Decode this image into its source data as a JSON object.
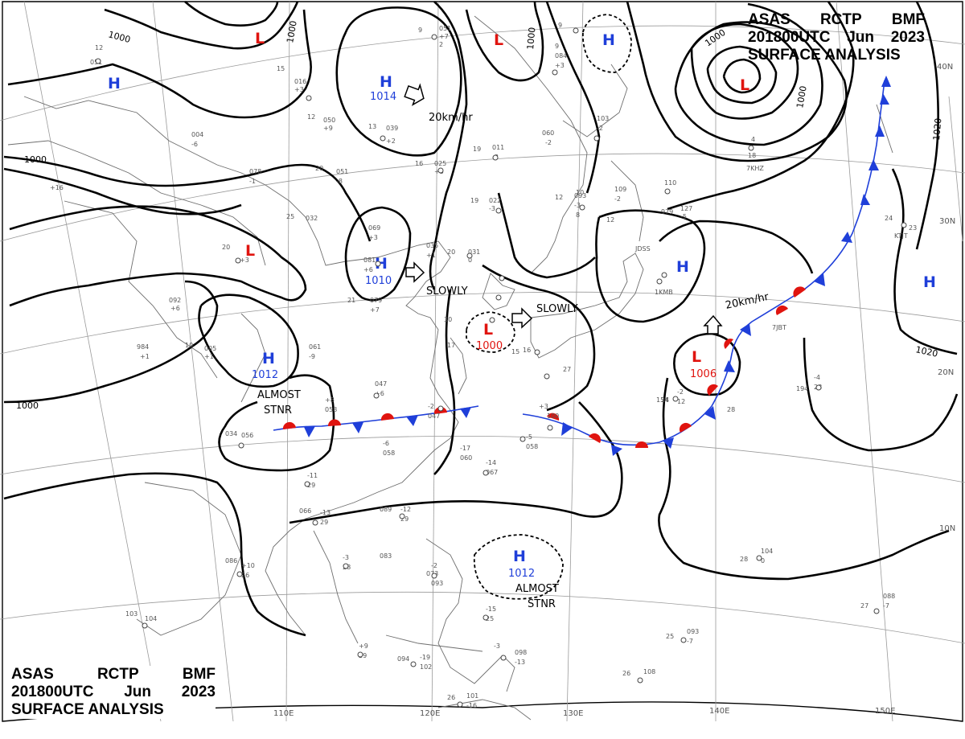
{
  "header_top": {
    "line1": [
      "ASAS",
      "RCTP",
      "BMF"
    ],
    "line2": [
      "201800UTC",
      "Jun",
      "2023"
    ],
    "line3": "SURFACE ANALYSIS"
  },
  "header_bottom": {
    "line1": [
      "ASAS",
      "RCTP",
      "BMF"
    ],
    "line2": [
      "201800UTC",
      "Jun",
      "2023"
    ],
    "line3": "SURFACE ANALYSIS"
  },
  "colors": {
    "high": "#1f3fd9",
    "low": "#e0140f",
    "isobar": "#000000",
    "coast": "#6e6e6e",
    "grid": "#9a9a9a"
  },
  "longitude_labels": [
    "110E",
    "120E",
    "130E",
    "140E",
    "150E"
  ],
  "latitude_labels": [
    "40N",
    "30N",
    "20N",
    "10N"
  ],
  "isobar_labels": [
    "1000",
    "1000",
    "1000",
    "1000",
    "1000",
    "1000",
    "1000",
    "1020",
    "1020"
  ],
  "pressure_centers": [
    {
      "type": "L",
      "value": ""
    },
    {
      "type": "L",
      "value": ""
    },
    {
      "type": "H",
      "value": ""
    },
    {
      "type": "L",
      "value": ""
    },
    {
      "type": "H",
      "value": "1014"
    },
    {
      "type": "H",
      "value": ""
    },
    {
      "type": "L",
      "value": ""
    },
    {
      "type": "H",
      "value": "1010"
    },
    {
      "type": "H",
      "value": ""
    },
    {
      "type": "H",
      "value": ""
    },
    {
      "type": "H",
      "value": "1012"
    },
    {
      "type": "L",
      "value": "1000"
    },
    {
      "type": "L",
      "value": "1006"
    },
    {
      "type": "H",
      "value": "1012"
    }
  ],
  "movement_labels": [
    "20km/hr",
    "SLOWLY",
    "SLOWLY",
    "20km/hr"
  ],
  "stationary_labels": [
    "ALMOST",
    "STNR",
    "ALMOST",
    "STNR"
  ],
  "station_numbers": [
    "12",
    "051",
    "9",
    "051",
    "+7",
    "2",
    "9",
    "9",
    "084",
    "+3",
    "103",
    "-2",
    "15",
    "016",
    "+3",
    "12",
    "050",
    "+9",
    "13",
    "039",
    "+2",
    "004",
    "-6",
    "078",
    "-1",
    "+16",
    "051",
    "-8",
    "20",
    "19",
    "011",
    "-3",
    "16",
    "025",
    "+5",
    "060",
    "-2",
    "19",
    "022",
    "-3",
    "12",
    "093",
    "-3",
    "8",
    "109",
    "-2",
    "110",
    "979",
    "127",
    "-5",
    "4",
    "18",
    "7KHZ",
    "25",
    "032",
    "20",
    "+3",
    "069",
    "+3",
    "035",
    "+1",
    "20",
    "031",
    "0",
    "081",
    "+6",
    "079",
    "+7",
    "092",
    "+6",
    "984",
    "+1",
    "10",
    "005",
    "+1",
    "061",
    "-9",
    "047",
    "+6",
    "+8",
    "058",
    "-2",
    "047",
    "-6",
    "058",
    "-17",
    "060",
    "-14",
    "067",
    "-5",
    "058",
    "+3",
    "100",
    "-2",
    "12",
    "154",
    "-4",
    "28",
    "194",
    "23",
    "24",
    "034",
    "056",
    "-11",
    "29",
    "066",
    "-13",
    "29",
    "089",
    "-12",
    "29",
    "083",
    "-3",
    "28",
    "086",
    "+10",
    "26",
    "103",
    "104",
    "+9",
    "29",
    "073",
    "-2",
    "093",
    "-15",
    "25",
    "094",
    "-19",
    "102",
    "-3",
    "098",
    "-13",
    "26",
    "108",
    "26",
    "101",
    "-16",
    "27",
    "088",
    "-7",
    "28",
    "104",
    "0",
    "25",
    "093",
    "-7",
    "1KMB",
    "JDSS",
    "7JBT",
    "KTJT",
    "30",
    "21",
    "17",
    "16",
    "27",
    "24",
    "15",
    "28",
    "12",
    "10"
  ]
}
